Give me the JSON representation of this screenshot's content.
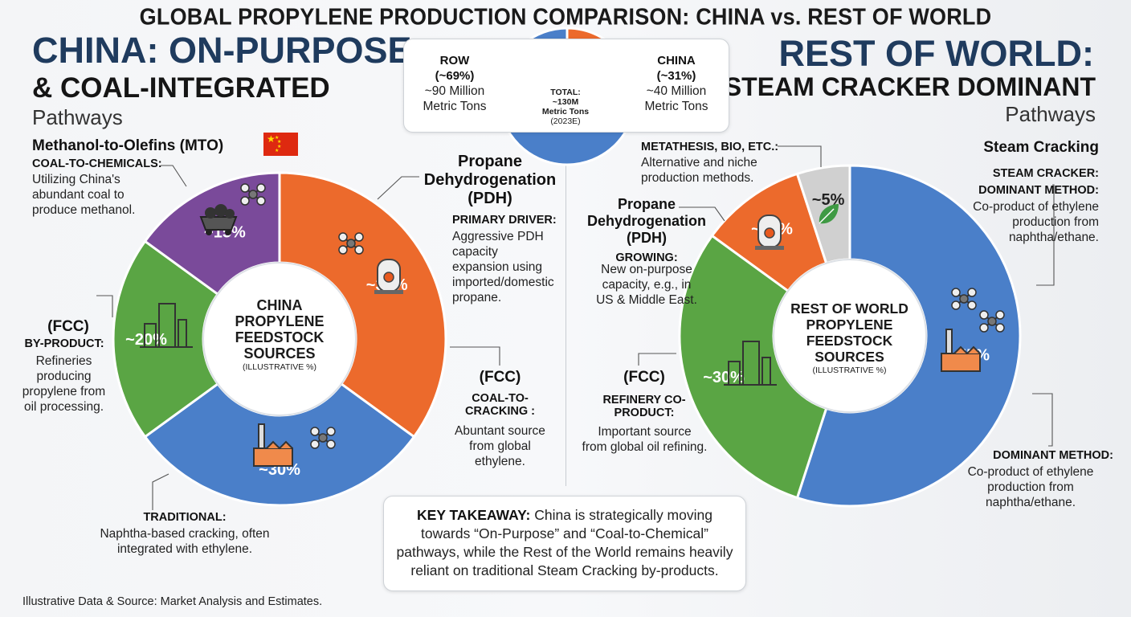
{
  "title": "GLOBAL PROPYLENE PRODUCTION COMPARISON: CHINA vs. REST OF WORLD",
  "china": {
    "title_line1": "CHINA: ON-PURPOSE",
    "title_line2": "& COAL-INTEGRATED",
    "pathways": "Pathways",
    "mto_heading": "Methanol-to-Olefins (MTO)",
    "mto_caps": "COAL-TO-CHEMICALS:",
    "mto_desc": [
      "Utilizing China's",
      "abundant coal to",
      "produce methanol."
    ],
    "pdh_heading": [
      "Propane",
      "Dehydrogenation",
      "(PDH)"
    ],
    "pdh_caps": "PRIMARY DRIVER:",
    "pdh_desc": [
      "Aggressive PDH",
      "capacity",
      "expansion using",
      "imported/domestic",
      "propane."
    ],
    "fcc_heading": "(FCC)",
    "fcc_caps": "BY-PRODUCT:",
    "fcc_desc": [
      "Refineries",
      "producing",
      "propylene from",
      "oil processing."
    ],
    "fcc2_heading": "(FCC)",
    "fcc2_caps": [
      "COAL-TO-",
      "CRACKING :"
    ],
    "fcc2_desc": [
      "Abuntant source",
      "from global",
      "ethylene."
    ],
    "trad_caps": "TRADITIONAL:",
    "trad_desc": [
      "Naphtha-based cracking, often",
      "integrated with ethylene."
    ],
    "center": [
      "CHINA",
      "PROPYLENE",
      "FEEDSTOCK",
      "SOURCES"
    ],
    "center_note": "(ILLUSTRATIVE %)"
  },
  "row": {
    "title_line1": "REST OF WORLD:",
    "title_line2": "STEAM CRACKER DOMINANT",
    "pathways": "Pathways",
    "meta_caps": "METATHESIS, BIO, ETC.:",
    "meta_desc": [
      "Alternative and niche",
      "production methods."
    ],
    "steam_heading": "Steam Cracking",
    "steam_caps": [
      "STEAM CRACKER:",
      "DOMINANT METHOD:"
    ],
    "steam_desc": [
      "Co-product of ethylene",
      "production from",
      "naphtha/ethane."
    ],
    "pdh_heading": [
      "Propane",
      "Dehydrogenation",
      "(PDH)"
    ],
    "pdh_caps": "GROWING:",
    "pdh_desc": [
      "New on-purpose",
      "capacity, e.g., in",
      "US & Middle East."
    ],
    "fcc_heading": "(FCC)",
    "fcc_caps": [
      "REFINERY CO-",
      "PRODUCT:"
    ],
    "fcc_desc": [
      "Important source",
      "from global oil refining."
    ],
    "dom_caps": "DOMINANT METHOD:",
    "dom_desc": [
      "Co-product of ethylene",
      "production from",
      "naphtha/ethane."
    ],
    "center": [
      "REST OF WORLD",
      "PROPYLENE",
      "FEEDSTOCK",
      "SOURCES"
    ],
    "center_note": "(ILLUSTRATIVE %)"
  },
  "total": {
    "row_label": [
      "ROW",
      "(~69%)"
    ],
    "row_desc": [
      "~90 Million",
      "Metric Tons"
    ],
    "china_label": [
      "CHINA",
      "(~31%)"
    ],
    "china_desc": [
      "~40 Million",
      "Metric Tons"
    ],
    "center": [
      "TOTAL:",
      "~130M",
      "Metric Tons",
      "(2023E)"
    ]
  },
  "takeaway": {
    "lead": "KEY TAKEAWAY:",
    "text": " China is strategically moving towards “On-Purpose” and “Coal-to-Chemical” pathways, while the Rest of the World remains heavily reliant on traditional Steam Cracking by-products."
  },
  "source": "Illustrative Data & Source: Market Analysis and Estimates.",
  "colors": {
    "orange": "#ec6a2c",
    "blue": "#4a7fc9",
    "green": "#5aa544",
    "purple": "#7a4a9a",
    "gray": "#d0d0d0",
    "navy": "#1f3b5e"
  },
  "chart_data": [
    {
      "type": "pie",
      "name": "china",
      "categories": [
        "Propane Dehydrogenation (PDH)",
        "Traditional steam cracking",
        "FCC by-product",
        "Methanol-to-Olefins (MTO)"
      ],
      "labels": [
        "~35%",
        "~30%",
        "~20%",
        "~15%"
      ],
      "values": [
        35,
        30,
        20,
        15
      ],
      "colors": [
        "#ec6a2c",
        "#4a7fc9",
        "#5aa544",
        "#7a4a9a"
      ]
    },
    {
      "type": "pie",
      "name": "row",
      "categories": [
        "Steam Cracking",
        "FCC",
        "Propane Dehydrogenation (PDH)",
        "Metathesis, Bio, etc."
      ],
      "labels": [
        "~55%",
        "~30%",
        "~10%",
        "~5%"
      ],
      "values": [
        55,
        30,
        10,
        5
      ],
      "colors": [
        "#4a7fc9",
        "#5aa544",
        "#ec6a2c",
        "#d0d0d0"
      ]
    },
    {
      "type": "pie",
      "name": "total",
      "categories": [
        "CHINA",
        "ROW"
      ],
      "labels": [
        "31%",
        "69%"
      ],
      "values": [
        31,
        69
      ],
      "colors": [
        "#ec6a2c",
        "#4a7fc9"
      ]
    }
  ]
}
